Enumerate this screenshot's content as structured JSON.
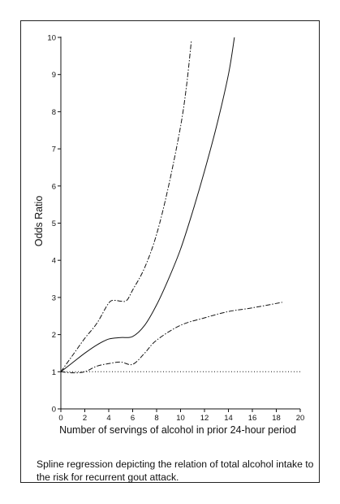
{
  "chart_data": {
    "type": "line",
    "xlabel": "Number of servings of alcohol in prior 24-hour period",
    "ylabel": "Odds Ratio",
    "xlim": [
      0,
      20
    ],
    "ylim": [
      0,
      10
    ],
    "x_ticks": [
      0,
      2,
      4,
      6,
      8,
      10,
      12,
      14,
      16,
      18,
      20
    ],
    "y_ticks": [
      0,
      1,
      2,
      3,
      4,
      5,
      6,
      7,
      8,
      9,
      10
    ],
    "grid": false,
    "series": [
      {
        "style": "dash-dot",
        "x": [
          0,
          1,
          2,
          3,
          4,
          4.5,
          5,
          5.5,
          6,
          7,
          8,
          9,
          10,
          10.5,
          10.9
        ],
        "y": [
          1.0,
          1.45,
          1.9,
          2.3,
          2.85,
          2.92,
          2.9,
          2.92,
          3.2,
          3.8,
          4.7,
          6.0,
          7.6,
          8.7,
          9.9
        ]
      },
      {
        "style": "solid",
        "x": [
          0,
          1,
          2,
          3,
          4,
          5,
          6,
          7,
          8,
          9,
          10,
          11,
          12,
          13,
          14,
          14.5
        ],
        "y": [
          1.0,
          1.25,
          1.5,
          1.72,
          1.88,
          1.92,
          1.95,
          2.25,
          2.8,
          3.5,
          4.3,
          5.3,
          6.4,
          7.6,
          9.0,
          10.0
        ]
      },
      {
        "style": "dash-dot",
        "x": [
          0,
          1,
          2,
          3,
          4,
          5,
          6,
          7,
          8,
          10,
          12,
          14,
          16,
          18.5
        ],
        "y": [
          1.0,
          0.97,
          1.0,
          1.15,
          1.22,
          1.26,
          1.2,
          1.5,
          1.85,
          2.25,
          2.45,
          2.62,
          2.72,
          2.87
        ]
      },
      {
        "style": "dotted",
        "x": [
          0,
          20
        ],
        "y": [
          1,
          1
        ]
      }
    ]
  },
  "caption": "Spline regression depicting the relation of total alcohol intake to the risk for recurrent gout attack."
}
